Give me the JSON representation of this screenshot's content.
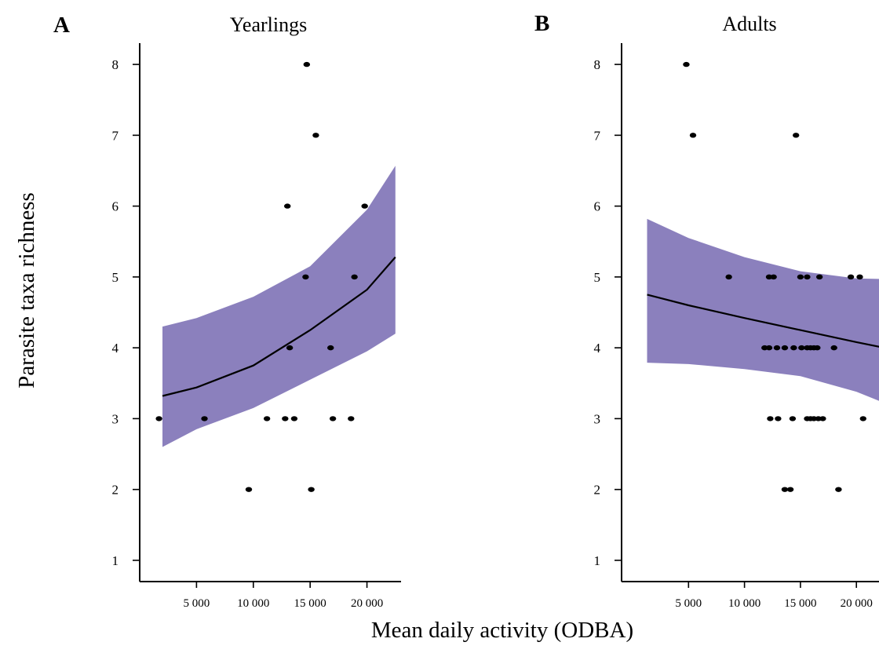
{
  "chart_data": [
    {
      "type": "scatter",
      "panel_label": "A",
      "title": "Yearlings",
      "xlabel": "Mean daily activity (ODBA)",
      "ylabel": "Parasite taxa richness",
      "xlim": [
        0,
        23000
      ],
      "ylim": [
        0.7,
        8.3
      ],
      "x_ticks": [
        5000,
        10000,
        15000,
        20000
      ],
      "x_tick_labels": [
        "5 000",
        "10 000",
        "15 000",
        "20 000"
      ],
      "y_ticks": [
        1,
        2,
        3,
        4,
        5,
        6,
        7,
        8
      ],
      "y_tick_labels": [
        "1",
        "2",
        "3",
        "4",
        "5",
        "6",
        "7",
        "8"
      ],
      "grid": false,
      "band_color": "#8b80bd",
      "points": [
        {
          "x": 1700,
          "y": 3
        },
        {
          "x": 5700,
          "y": 3
        },
        {
          "x": 9600,
          "y": 2
        },
        {
          "x": 11200,
          "y": 3
        },
        {
          "x": 12800,
          "y": 3
        },
        {
          "x": 13600,
          "y": 3
        },
        {
          "x": 13000,
          "y": 6
        },
        {
          "x": 13200,
          "y": 4
        },
        {
          "x": 14600,
          "y": 5
        },
        {
          "x": 14700,
          "y": 8
        },
        {
          "x": 15100,
          "y": 2
        },
        {
          "x": 15500,
          "y": 7
        },
        {
          "x": 16800,
          "y": 4
        },
        {
          "x": 17000,
          "y": 3
        },
        {
          "x": 18600,
          "y": 3
        },
        {
          "x": 18900,
          "y": 5
        },
        {
          "x": 19800,
          "y": 6
        }
      ],
      "fit": {
        "x": [
          2000,
          5000,
          10000,
          15000,
          20000,
          22500
        ],
        "y": [
          3.32,
          3.44,
          3.75,
          4.25,
          4.82,
          5.28
        ]
      },
      "ci_band": {
        "x": [
          2000,
          5000,
          10000,
          15000,
          20000,
          22500
        ],
        "lower": [
          2.6,
          2.85,
          3.15,
          3.55,
          3.95,
          4.2
        ],
        "upper": [
          4.3,
          4.42,
          4.72,
          5.15,
          5.95,
          6.57
        ]
      }
    },
    {
      "type": "scatter",
      "panel_label": "B",
      "title": "Adults",
      "xlim": [
        0,
        23000
      ],
      "ylim": [
        0.7,
        8.3
      ],
      "x_ticks": [
        5000,
        10000,
        15000,
        20000
      ],
      "x_tick_labels": [
        "5 000",
        "10 000",
        "15 000",
        "20 000"
      ],
      "y_ticks": [
        1,
        2,
        3,
        4,
        5,
        6,
        7,
        8
      ],
      "y_tick_labels": [
        "1",
        "2",
        "3",
        "4",
        "5",
        "6",
        "7",
        "8"
      ],
      "grid": false,
      "band_color": "#8b80bd",
      "points": [
        {
          "x": 4800,
          "y": 8
        },
        {
          "x": 5400,
          "y": 7
        },
        {
          "x": 8600,
          "y": 5
        },
        {
          "x": 14600,
          "y": 7
        },
        {
          "x": 12200,
          "y": 5
        },
        {
          "x": 12600,
          "y": 5
        },
        {
          "x": 15000,
          "y": 5
        },
        {
          "x": 15600,
          "y": 5
        },
        {
          "x": 16700,
          "y": 5
        },
        {
          "x": 19500,
          "y": 5
        },
        {
          "x": 20300,
          "y": 5
        },
        {
          "x": 11800,
          "y": 4
        },
        {
          "x": 12200,
          "y": 4
        },
        {
          "x": 12900,
          "y": 4
        },
        {
          "x": 13600,
          "y": 4
        },
        {
          "x": 14400,
          "y": 4
        },
        {
          "x": 15100,
          "y": 4
        },
        {
          "x": 15600,
          "y": 4
        },
        {
          "x": 15900,
          "y": 4
        },
        {
          "x": 16200,
          "y": 4
        },
        {
          "x": 16500,
          "y": 4
        },
        {
          "x": 18000,
          "y": 4
        },
        {
          "x": 12300,
          "y": 3
        },
        {
          "x": 13000,
          "y": 3
        },
        {
          "x": 14300,
          "y": 3
        },
        {
          "x": 15600,
          "y": 3
        },
        {
          "x": 15900,
          "y": 3
        },
        {
          "x": 16200,
          "y": 3
        },
        {
          "x": 16600,
          "y": 3
        },
        {
          "x": 17000,
          "y": 3
        },
        {
          "x": 20600,
          "y": 3
        },
        {
          "x": 13600,
          "y": 2
        },
        {
          "x": 14100,
          "y": 2
        },
        {
          "x": 18400,
          "y": 2
        }
      ],
      "fit": {
        "x": [
          1300,
          5000,
          10000,
          15000,
          20000,
          22500
        ],
        "y": [
          4.75,
          4.6,
          4.42,
          4.25,
          4.08,
          4.0
        ]
      },
      "ci_band": {
        "x": [
          1300,
          5000,
          10000,
          15000,
          20000,
          22500
        ],
        "lower": [
          3.79,
          3.77,
          3.7,
          3.6,
          3.38,
          3.22
        ],
        "upper": [
          5.82,
          5.55,
          5.28,
          5.08,
          4.98,
          4.97
        ]
      }
    }
  ]
}
